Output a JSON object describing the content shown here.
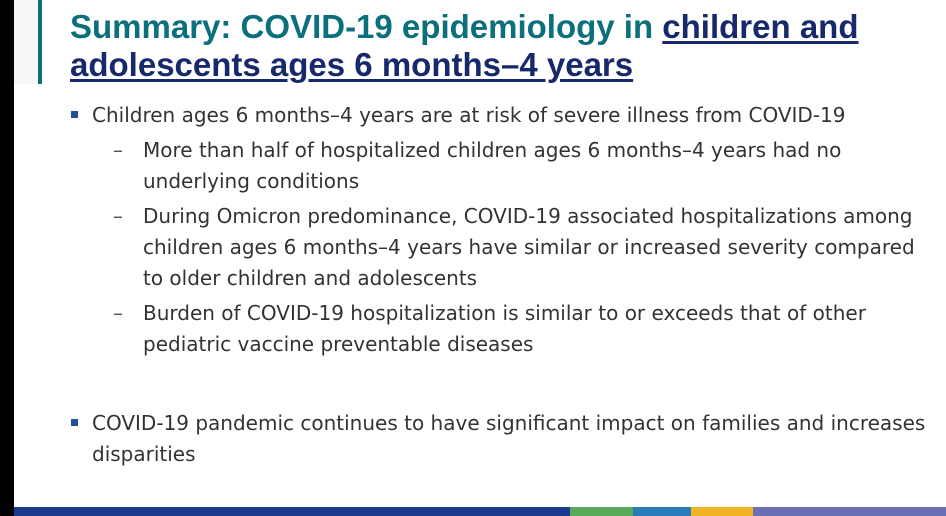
{
  "slide": {
    "title_lead": "Summary: COVID-19 epidemiology in ",
    "title_emphasis": "children and adolescents ages 6 months–4 years",
    "bullets": [
      {
        "text": "Children ages 6 months–4 years are at risk of severe illness from COVID-19",
        "sub": [
          "More than half of hospitalized children ages 6 months–4 years had no underlying conditions",
          "During Omicron predominance, COVID-19 associated hospitalizations among children ages 6 months–4 years have similar or increased severity compared to older children and adolescents",
          "Burden of COVID-19 hospitalization is similar to or exceeds that of other pediatric vaccine preventable diseases"
        ]
      },
      {
        "text": "COVID-19 pandemic continues to have significant impact on families and increases disparities"
      }
    ],
    "footer_colors": [
      "#1a3a8f",
      "#5aa85a",
      "#2b7bb9",
      "#f0b323",
      "#6a6fb3"
    ]
  }
}
